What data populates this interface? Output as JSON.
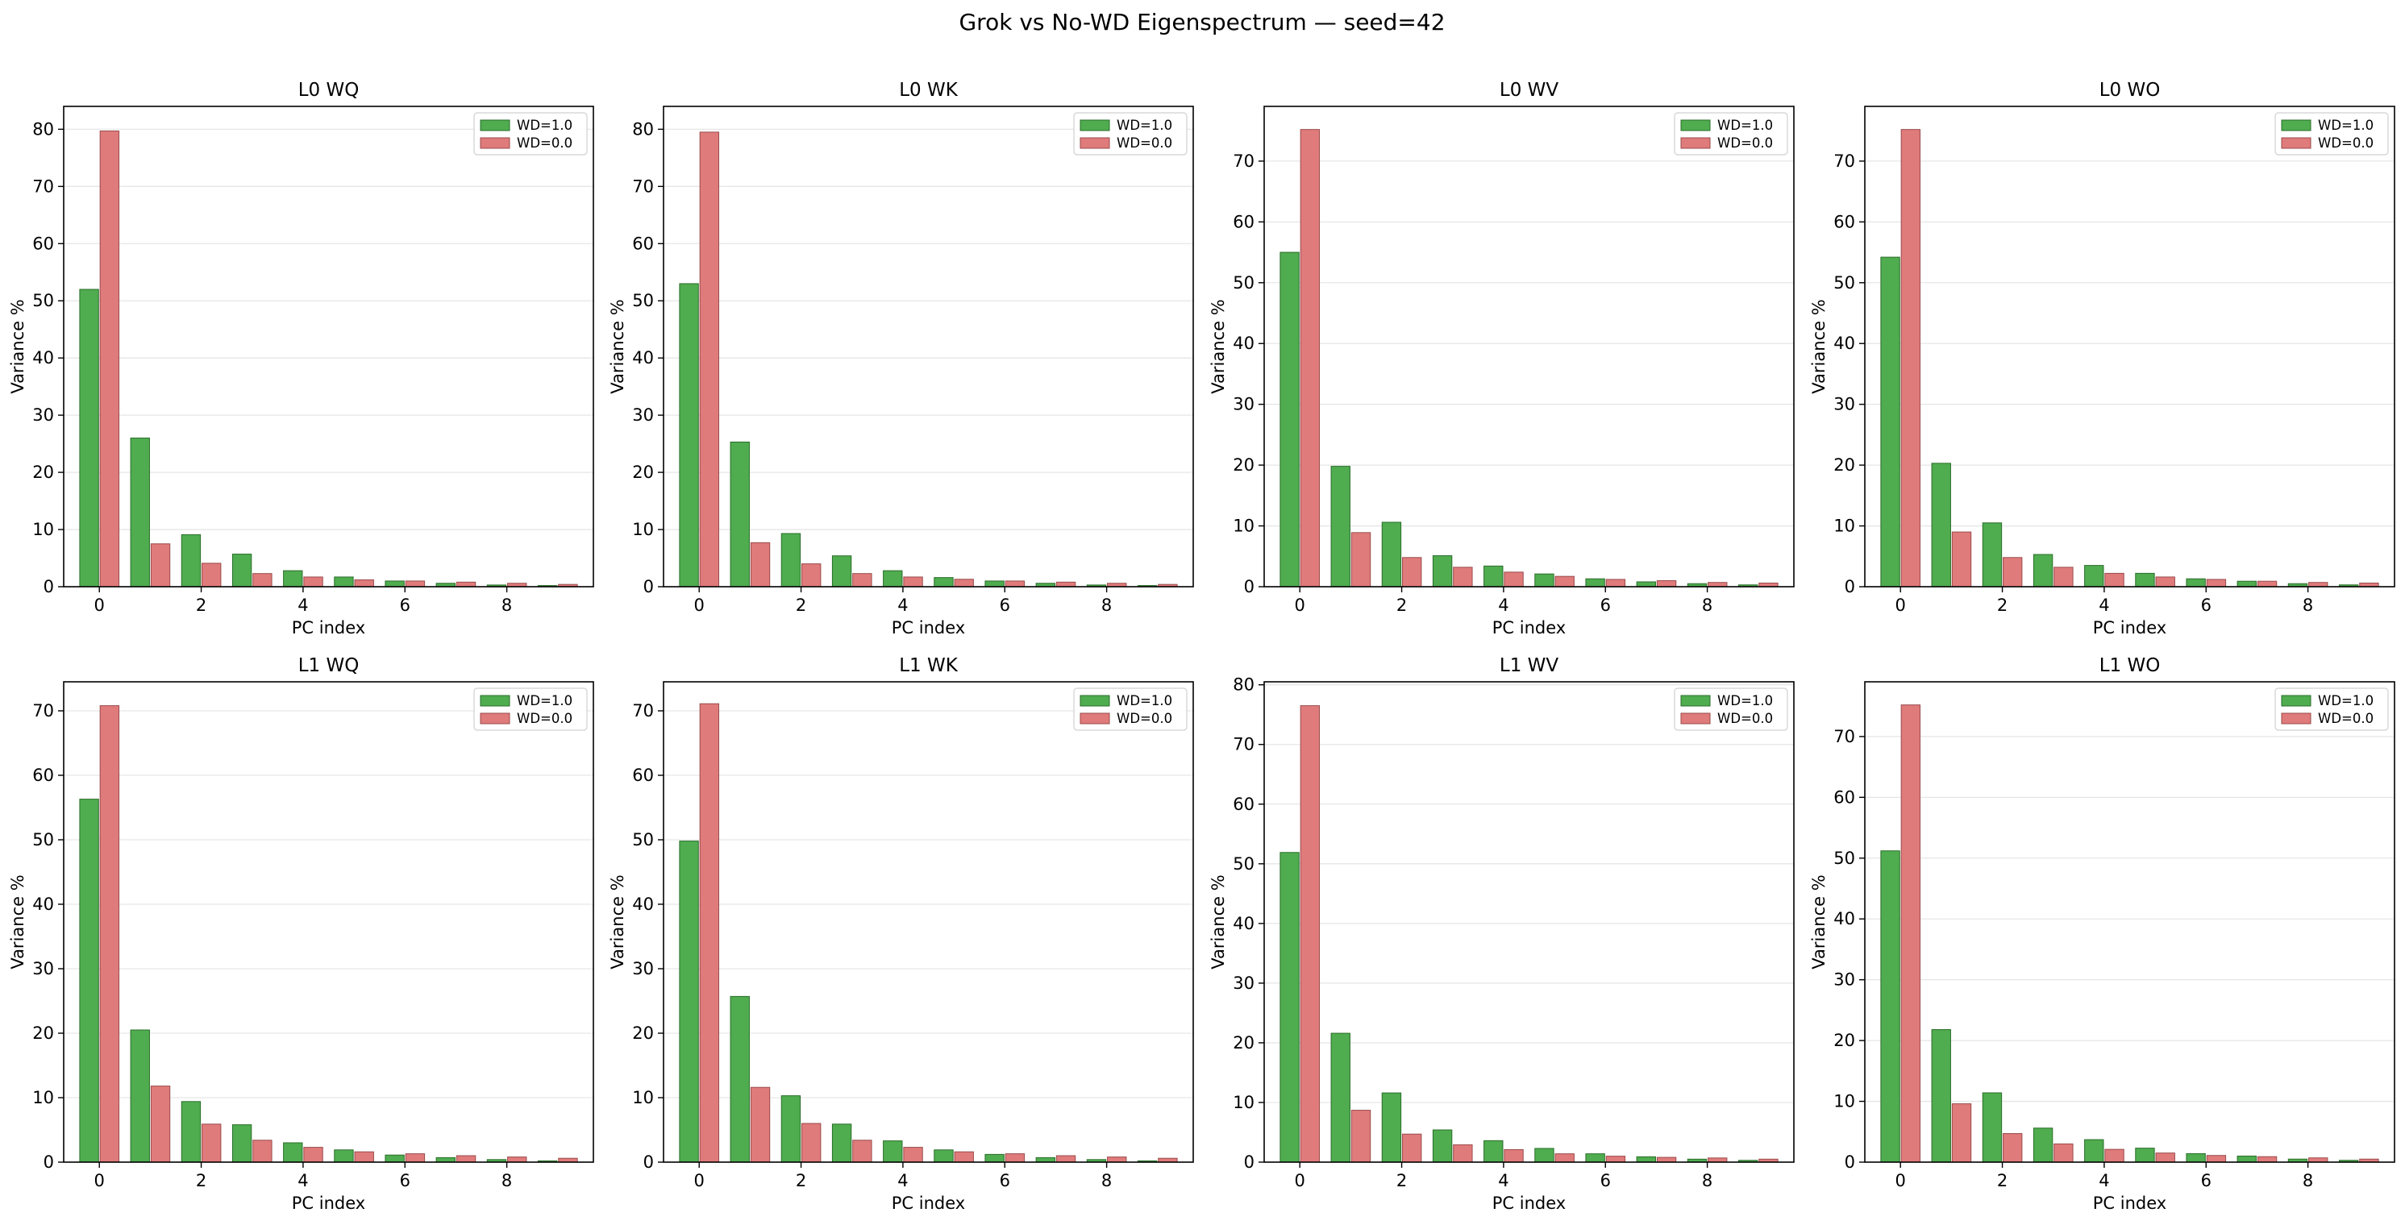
{
  "figure": {
    "suptitle": "Grok vs No-WD Eigenspectrum — seed=42"
  },
  "colors": {
    "wd1": "#4fac4f",
    "wd1_edge": "#2a6e2a",
    "wd0": "#e07b7b",
    "wd0_edge": "#9a4a4a",
    "grid": "#e6e6e6"
  },
  "chart_data": [
    {
      "type": "bar",
      "title": "L0 WQ",
      "xlabel": "PC index",
      "ylabel": "Variance %",
      "x": [
        0,
        1,
        2,
        3,
        4,
        5,
        6,
        7,
        8,
        9
      ],
      "xticks": [
        0,
        2,
        4,
        6,
        8
      ],
      "ylim": [
        0,
        84
      ],
      "yticks": [
        0,
        10,
        20,
        30,
        40,
        50,
        60,
        70,
        80
      ],
      "series": [
        {
          "name": "WD=1.0",
          "values": [
            52.0,
            26.0,
            9.1,
            5.7,
            2.8,
            1.7,
            1.0,
            0.6,
            0.3,
            0.2
          ]
        },
        {
          "name": "WD=0.0",
          "values": [
            79.7,
            7.5,
            4.1,
            2.3,
            1.7,
            1.2,
            1.0,
            0.8,
            0.6,
            0.4
          ]
        }
      ],
      "legend": "top-right"
    },
    {
      "type": "bar",
      "title": "L0 WK",
      "xlabel": "PC index",
      "ylabel": "Variance %",
      "x": [
        0,
        1,
        2,
        3,
        4,
        5,
        6,
        7,
        8,
        9
      ],
      "xticks": [
        0,
        2,
        4,
        6,
        8
      ],
      "ylim": [
        0,
        84
      ],
      "yticks": [
        0,
        10,
        20,
        30,
        40,
        50,
        60,
        70,
        80
      ],
      "series": [
        {
          "name": "WD=1.0",
          "values": [
            53.0,
            25.3,
            9.3,
            5.4,
            2.8,
            1.6,
            1.0,
            0.6,
            0.3,
            0.2
          ]
        },
        {
          "name": "WD=0.0",
          "values": [
            79.5,
            7.7,
            4.0,
            2.3,
            1.7,
            1.3,
            1.0,
            0.8,
            0.6,
            0.4
          ]
        }
      ],
      "legend": "top-right"
    },
    {
      "type": "bar",
      "title": "L0 WV",
      "xlabel": "PC index",
      "ylabel": "Variance %",
      "x": [
        0,
        1,
        2,
        3,
        4,
        5,
        6,
        7,
        8,
        9
      ],
      "xticks": [
        0,
        2,
        4,
        6,
        8
      ],
      "ylim": [
        0,
        79
      ],
      "yticks": [
        0,
        10,
        20,
        30,
        40,
        50,
        60,
        70
      ],
      "series": [
        {
          "name": "WD=1.0",
          "values": [
            55.0,
            19.8,
            10.6,
            5.1,
            3.4,
            2.1,
            1.3,
            0.8,
            0.5,
            0.3
          ]
        },
        {
          "name": "WD=0.0",
          "values": [
            75.2,
            8.9,
            4.8,
            3.2,
            2.4,
            1.7,
            1.2,
            1.0,
            0.7,
            0.6
          ]
        }
      ],
      "legend": "top-right"
    },
    {
      "type": "bar",
      "title": "L0 WO",
      "xlabel": "PC index",
      "ylabel": "Variance %",
      "x": [
        0,
        1,
        2,
        3,
        4,
        5,
        6,
        7,
        8,
        9
      ],
      "xticks": [
        0,
        2,
        4,
        6,
        8
      ],
      "ylim": [
        0,
        79
      ],
      "yticks": [
        0,
        10,
        20,
        30,
        40,
        50,
        60,
        70
      ],
      "series": [
        {
          "name": "WD=1.0",
          "values": [
            54.2,
            20.3,
            10.5,
            5.3,
            3.5,
            2.2,
            1.3,
            0.9,
            0.5,
            0.3
          ]
        },
        {
          "name": "WD=0.0",
          "values": [
            75.2,
            9.0,
            4.8,
            3.2,
            2.2,
            1.6,
            1.2,
            0.9,
            0.7,
            0.6
          ]
        }
      ],
      "legend": "top-right"
    },
    {
      "type": "bar",
      "title": "L1 WQ",
      "xlabel": "PC index",
      "ylabel": "Variance %",
      "x": [
        0,
        1,
        2,
        3,
        4,
        5,
        6,
        7,
        8,
        9
      ],
      "xticks": [
        0,
        2,
        4,
        6,
        8
      ],
      "ylim": [
        0,
        74.5
      ],
      "yticks": [
        0,
        10,
        20,
        30,
        40,
        50,
        60,
        70
      ],
      "series": [
        {
          "name": "WD=1.0",
          "values": [
            56.3,
            20.5,
            9.4,
            5.8,
            3.0,
            1.9,
            1.1,
            0.7,
            0.4,
            0.2
          ]
        },
        {
          "name": "WD=0.0",
          "values": [
            70.8,
            11.8,
            5.9,
            3.4,
            2.3,
            1.6,
            1.3,
            1.0,
            0.8,
            0.6
          ]
        }
      ],
      "legend": "top-right"
    },
    {
      "type": "bar",
      "title": "L1 WK",
      "xlabel": "PC index",
      "ylabel": "Variance %",
      "x": [
        0,
        1,
        2,
        3,
        4,
        5,
        6,
        7,
        8,
        9
      ],
      "xticks": [
        0,
        2,
        4,
        6,
        8
      ],
      "ylim": [
        0,
        74.5
      ],
      "yticks": [
        0,
        10,
        20,
        30,
        40,
        50,
        60,
        70
      ],
      "series": [
        {
          "name": "WD=1.0",
          "values": [
            49.8,
            25.7,
            10.3,
            5.9,
            3.3,
            1.9,
            1.2,
            0.7,
            0.4,
            0.2
          ]
        },
        {
          "name": "WD=0.0",
          "values": [
            71.1,
            11.6,
            6.0,
            3.4,
            2.3,
            1.6,
            1.3,
            1.0,
            0.8,
            0.6
          ]
        }
      ],
      "legend": "top-right"
    },
    {
      "type": "bar",
      "title": "L1 WV",
      "xlabel": "PC index",
      "ylabel": "Variance %",
      "x": [
        0,
        1,
        2,
        3,
        4,
        5,
        6,
        7,
        8,
        9
      ],
      "xticks": [
        0,
        2,
        4,
        6,
        8
      ],
      "ylim": [
        0,
        80.5
      ],
      "yticks": [
        0,
        10,
        20,
        30,
        40,
        50,
        60,
        70,
        80
      ],
      "series": [
        {
          "name": "WD=1.0",
          "values": [
            51.9,
            21.6,
            11.6,
            5.4,
            3.6,
            2.3,
            1.4,
            0.9,
            0.5,
            0.3
          ]
        },
        {
          "name": "WD=0.0",
          "values": [
            76.5,
            8.7,
            4.7,
            2.9,
            2.1,
            1.4,
            1.0,
            0.8,
            0.7,
            0.5
          ]
        }
      ],
      "legend": "top-right"
    },
    {
      "type": "bar",
      "title": "L1 WO",
      "xlabel": "PC index",
      "ylabel": "Variance %",
      "x": [
        0,
        1,
        2,
        3,
        4,
        5,
        6,
        7,
        8,
        9
      ],
      "xticks": [
        0,
        2,
        4,
        6,
        8
      ],
      "ylim": [
        0,
        79
      ],
      "yticks": [
        0,
        10,
        20,
        30,
        40,
        50,
        60,
        70
      ],
      "series": [
        {
          "name": "WD=1.0",
          "values": [
            51.2,
            21.8,
            11.4,
            5.6,
            3.7,
            2.3,
            1.4,
            1.0,
            0.5,
            0.3
          ]
        },
        {
          "name": "WD=0.0",
          "values": [
            75.2,
            9.6,
            4.7,
            3.0,
            2.1,
            1.5,
            1.1,
            0.9,
            0.7,
            0.5
          ]
        }
      ],
      "legend": "top-right"
    }
  ]
}
